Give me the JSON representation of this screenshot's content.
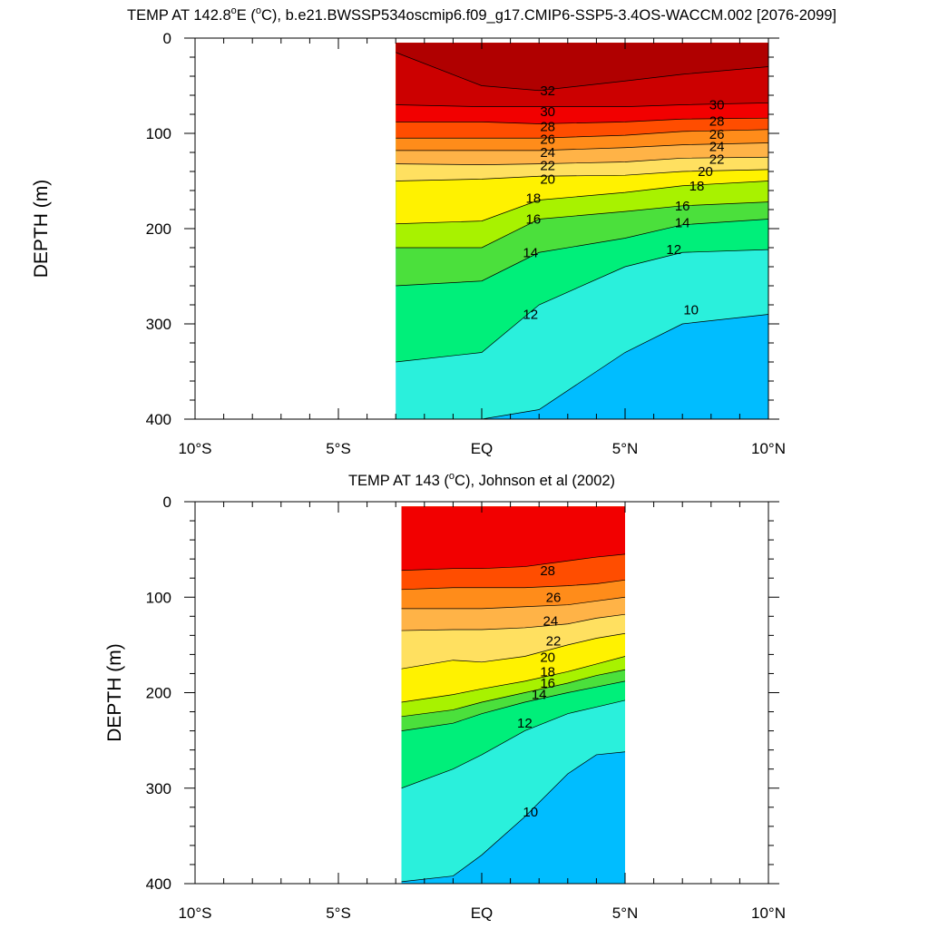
{
  "chart_data": [
    {
      "type": "contour",
      "title": "TEMP AT 142.8°E (°C), b.e21.BWSSP534oscmip6.f09_g17.CMIP6-SSP5-3.4OS-WACCM.002 [2076-2099]",
      "title_parts": {
        "before": "TEMP AT 142.8",
        "sup": "o",
        "mid": "E (",
        "sup2": "o",
        "after": "C), b.e21.BWSSP534oscmip6.f09_g17.CMIP6-SSP5-3.4OS-WACCM.002 [2076-2099]"
      },
      "xlabel": "",
      "ylabel": "DEPTH (m)",
      "xlim": [
        -10,
        10
      ],
      "ylim": [
        0,
        400
      ],
      "y_reversed": true,
      "x_ticks": [
        {
          "v": -10,
          "label": "10°S"
        },
        {
          "v": -5,
          "label": "5°S"
        },
        {
          "v": 0,
          "label": "EQ"
        },
        {
          "v": 5,
          "label": "5°N"
        },
        {
          "v": 10,
          "label": "10°N"
        }
      ],
      "y_ticks": [
        0,
        100,
        200,
        300,
        400
      ],
      "data_extent": {
        "x": [
          -3,
          10
        ],
        "y": [
          5,
          400
        ]
      },
      "lat": [
        -3,
        0,
        2,
        5,
        7,
        10
      ],
      "isotherms": [
        {
          "t": 32,
          "depth": [
            15,
            50,
            55,
            45,
            38,
            30
          ]
        },
        {
          "t": 30,
          "depth": [
            70,
            72,
            72,
            72,
            70,
            68
          ]
        },
        {
          "t": 28,
          "depth": [
            88,
            88,
            90,
            88,
            85,
            84
          ]
        },
        {
          "t": 26,
          "depth": [
            105,
            105,
            105,
            102,
            98,
            96
          ]
        },
        {
          "t": 24,
          "depth": [
            118,
            118,
            118,
            115,
            112,
            110
          ]
        },
        {
          "t": 22,
          "depth": [
            132,
            133,
            132,
            130,
            126,
            125
          ]
        },
        {
          "t": 20,
          "depth": [
            150,
            148,
            145,
            144,
            140,
            138
          ]
        },
        {
          "t": 18,
          "depth": [
            195,
            192,
            170,
            162,
            155,
            150
          ]
        },
        {
          "t": 16,
          "depth": [
            220,
            220,
            190,
            182,
            176,
            172
          ]
        },
        {
          "t": 14,
          "depth": [
            260,
            255,
            225,
            210,
            196,
            190
          ]
        },
        {
          "t": 12,
          "depth": [
            340,
            330,
            280,
            240,
            225,
            222
          ]
        },
        {
          "t": 10,
          "depth": [
            400,
            400,
            390,
            330,
            300,
            290
          ]
        }
      ],
      "contour_labels": [
        {
          "text": "32",
          "lat": 2.3,
          "depth": 55
        },
        {
          "text": "30",
          "lat": 2.3,
          "depth": 77
        },
        {
          "text": "28",
          "lat": 2.3,
          "depth": 93
        },
        {
          "text": "26",
          "lat": 2.3,
          "depth": 106
        },
        {
          "text": "24",
          "lat": 2.3,
          "depth": 120
        },
        {
          "text": "22",
          "lat": 2.3,
          "depth": 134
        },
        {
          "text": "20",
          "lat": 2.3,
          "depth": 148
        },
        {
          "text": "18",
          "lat": 1.8,
          "depth": 168
        },
        {
          "text": "16",
          "lat": 1.8,
          "depth": 190
        },
        {
          "text": "14",
          "lat": 1.7,
          "depth": 225
        },
        {
          "text": "12",
          "lat": 1.7,
          "depth": 290
        },
        {
          "text": "30",
          "lat": 8.2,
          "depth": 70
        },
        {
          "text": "28",
          "lat": 8.2,
          "depth": 87
        },
        {
          "text": "26",
          "lat": 8.2,
          "depth": 101
        },
        {
          "text": "24",
          "lat": 8.2,
          "depth": 114
        },
        {
          "text": "22",
          "lat": 8.2,
          "depth": 127
        },
        {
          "text": "20",
          "lat": 7.8,
          "depth": 140
        },
        {
          "text": "18",
          "lat": 7.5,
          "depth": 155
        },
        {
          "text": "16",
          "lat": 7.0,
          "depth": 176
        },
        {
          "text": "14",
          "lat": 7.0,
          "depth": 194
        },
        {
          "text": "12",
          "lat": 6.7,
          "depth": 222
        },
        {
          "text": "10",
          "lat": 7.3,
          "depth": 285
        }
      ]
    },
    {
      "type": "contour",
      "title": "TEMP AT 143 (°C), Johnson et al (2002)",
      "title_parts": {
        "before": "TEMP AT 143 (",
        "sup": "o",
        "after": "C), Johnson et al (2002)"
      },
      "xlabel": "",
      "ylabel": "DEPTH (m)",
      "xlim": [
        -10,
        10
      ],
      "ylim": [
        0,
        400
      ],
      "y_reversed": true,
      "x_ticks": [
        {
          "v": -10,
          "label": "10°S"
        },
        {
          "v": -5,
          "label": "5°S"
        },
        {
          "v": 0,
          "label": "EQ"
        },
        {
          "v": 5,
          "label": "5°N"
        },
        {
          "v": 10,
          "label": "10°N"
        }
      ],
      "y_ticks": [
        0,
        100,
        200,
        300,
        400
      ],
      "data_extent": {
        "x": [
          -2.8,
          5
        ],
        "y": [
          5,
          400
        ]
      },
      "lat": [
        -2.8,
        -1,
        0,
        1.5,
        3,
        4,
        5
      ],
      "isotherms": [
        {
          "t": 28,
          "depth": [
            72,
            70,
            70,
            68,
            62,
            58,
            55
          ]
        },
        {
          "t": 26,
          "depth": [
            92,
            90,
            90,
            90,
            88,
            86,
            82
          ]
        },
        {
          "t": 24,
          "depth": [
            112,
            112,
            112,
            110,
            108,
            104,
            100
          ]
        },
        {
          "t": 22,
          "depth": [
            135,
            134,
            134,
            132,
            128,
            122,
            118
          ]
        },
        {
          "t": 20,
          "depth": [
            175,
            166,
            168,
            162,
            150,
            143,
            138
          ]
        },
        {
          "t": 18,
          "depth": [
            210,
            202,
            196,
            188,
            178,
            170,
            162
          ]
        },
        {
          "t": 16,
          "depth": [
            225,
            218,
            210,
            200,
            190,
            182,
            176
          ]
        },
        {
          "t": 14,
          "depth": [
            240,
            232,
            222,
            210,
            200,
            194,
            188
          ]
        },
        {
          "t": 12,
          "depth": [
            300,
            280,
            265,
            240,
            222,
            215,
            208
          ]
        },
        {
          "t": 10,
          "depth": [
            398,
            392,
            370,
            330,
            285,
            265,
            262
          ]
        }
      ],
      "contour_labels": [
        {
          "text": "28",
          "lat": 2.3,
          "depth": 72
        },
        {
          "text": "26",
          "lat": 2.5,
          "depth": 100
        },
        {
          "text": "24",
          "lat": 2.4,
          "depth": 125
        },
        {
          "text": "22",
          "lat": 2.5,
          "depth": 146
        },
        {
          "text": "20",
          "lat": 2.3,
          "depth": 163
        },
        {
          "text": "18",
          "lat": 2.3,
          "depth": 178
        },
        {
          "text": "16",
          "lat": 2.3,
          "depth": 190
        },
        {
          "text": "14",
          "lat": 2.0,
          "depth": 202
        },
        {
          "text": "12",
          "lat": 1.5,
          "depth": 232
        },
        {
          "text": "10",
          "lat": 1.7,
          "depth": 325
        }
      ]
    }
  ],
  "colors": {
    "t32": "#b00000",
    "t30": "#cc0000",
    "t28": "#f20000",
    "t26": "#ff4d00",
    "t24": "#ff8c1a",
    "t22": "#ffb347",
    "t20": "#ffe060",
    "t18": "#fff200",
    "t16": "#a8f200",
    "t14": "#4be03c",
    "t12": "#00ef7a",
    "t10": "#2af0dc",
    "t8": "#00bdff",
    "t6": "#1a6ef0",
    "t4": "#0033ff"
  }
}
